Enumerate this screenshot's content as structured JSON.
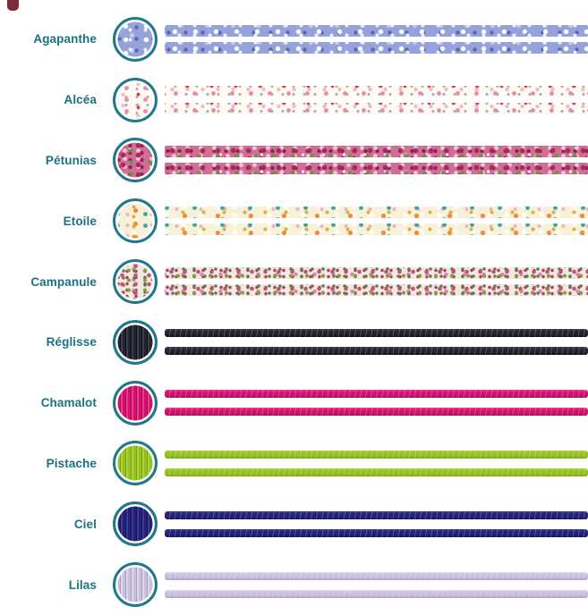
{
  "page": {
    "background": "#ffffff",
    "label_color": "#1b7280",
    "ring_color": "#20788a"
  },
  "corner_mark": {
    "color": "#7c2d3a"
  },
  "rows": [
    {
      "id": "agapanthe",
      "label": "Agapanthe",
      "type": "print",
      "description": "periwinkle blue floral liberty print",
      "colors": [
        "#96a3da",
        "#ffffff",
        "#5a68b4"
      ]
    },
    {
      "id": "alcea",
      "label": "Alcéa",
      "type": "print",
      "description": "small pink and red flowers on cream",
      "colors": [
        "#fcfaf2",
        "#ec86b4",
        "#d23c50",
        "#a8b096"
      ]
    },
    {
      "id": "petunias",
      "label": "Pétunias",
      "type": "print",
      "description": "dense magenta petunia floral with green leaves",
      "colors": [
        "#cf6f93",
        "#a52a62",
        "#6e8f4e"
      ]
    },
    {
      "id": "etoile",
      "label": "Etoile",
      "type": "print",
      "description": "orange, teal and gold stars on cream",
      "colors": [
        "#f8f1da",
        "#f08a3c",
        "#3aa6a0",
        "#d9b23c"
      ]
    },
    {
      "id": "campanule",
      "label": "Campanule",
      "type": "print",
      "description": "dense small floral in pink, olive and green",
      "colors": [
        "#efe9df",
        "#c2527a",
        "#8a9a3f"
      ]
    },
    {
      "id": "reglisse",
      "label": "Réglisse",
      "type": "cord",
      "color": "#23242e",
      "light": "#3c3e4c",
      "dark": "#0d0e14"
    },
    {
      "id": "chamalot",
      "label": "Chamalot",
      "type": "cord",
      "color": "#d40f6f",
      "light": "#e63d8d",
      "dark": "#a80b54"
    },
    {
      "id": "pistache",
      "label": "Pistache",
      "type": "cord",
      "color": "#96c11f",
      "light": "#abd23f",
      "dark": "#7aa216"
    },
    {
      "id": "ciel",
      "label": "Ciel",
      "type": "cord",
      "color": "#232277",
      "light": "#3b3a94",
      "dark": "#141356"
    },
    {
      "id": "lilas",
      "label": "Lilas",
      "type": "cord",
      "color": "#c9c0dd",
      "light": "#ded7ec",
      "dark": "#a89dc4"
    }
  ]
}
